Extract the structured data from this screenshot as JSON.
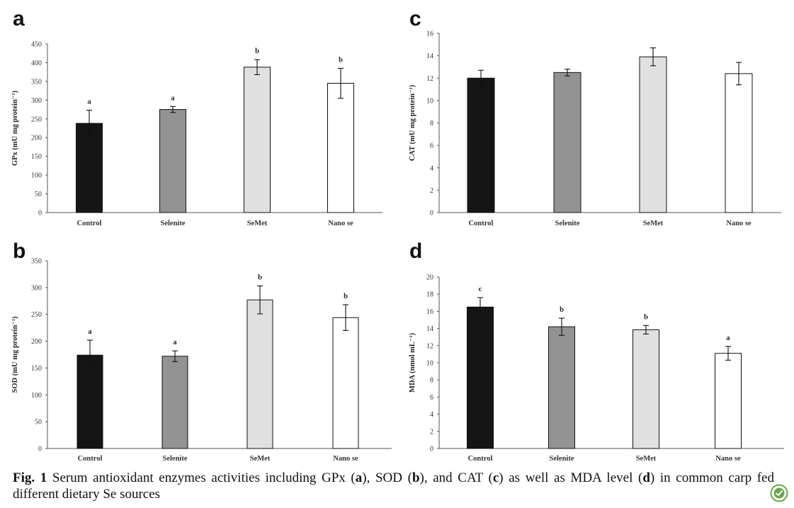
{
  "panels": [
    {
      "letter": "a",
      "chart_data": {
        "type": "bar",
        "categories": [
          "Control",
          "Selenite",
          "SeMet",
          "Nano se"
        ],
        "values": [
          238,
          275,
          388,
          345
        ],
        "errors": [
          35,
          8,
          20,
          40
        ],
        "labels": [
          "a",
          "a",
          "b",
          "b"
        ],
        "ylabel": "GPx (mU mg protein⁻¹)",
        "ylim": [
          0,
          450
        ],
        "yticks": [
          0,
          50,
          100,
          150,
          200,
          250,
          300,
          350,
          400,
          450
        ],
        "bar_colors": [
          "#151515",
          "#939393",
          "#e0e0e0",
          "#ffffff"
        ]
      }
    },
    {
      "letter": "b",
      "chart_data": {
        "type": "bar",
        "categories": [
          "Control",
          "Selenite",
          "SeMet",
          "Nano se"
        ],
        "values": [
          174,
          172,
          277,
          244
        ],
        "errors": [
          28,
          10,
          26,
          24
        ],
        "labels": [
          "a",
          "a",
          "b",
          "b"
        ],
        "ylabel": "SOD (mU mg protein⁻¹)",
        "ylim": [
          0,
          350
        ],
        "yticks": [
          0,
          50,
          100,
          150,
          200,
          250,
          300,
          350
        ],
        "bar_colors": [
          "#151515",
          "#939393",
          "#e0e0e0",
          "#ffffff"
        ]
      }
    },
    {
      "letter": "c",
      "chart_data": {
        "type": "bar",
        "categories": [
          "Control",
          "Selenite",
          "SeMet",
          "Nano se"
        ],
        "values": [
          12.0,
          12.5,
          13.9,
          12.4
        ],
        "errors": [
          0.7,
          0.3,
          0.8,
          1.0
        ],
        "labels": [
          "",
          "",
          "",
          ""
        ],
        "ylabel": "CAT (mU mg protein⁻¹)",
        "ylim": [
          0,
          16
        ],
        "yticks": [
          0,
          2,
          4,
          6,
          8,
          10,
          12,
          14,
          16
        ],
        "bar_colors": [
          "#151515",
          "#939393",
          "#e0e0e0",
          "#ffffff"
        ]
      }
    },
    {
      "letter": "d",
      "chart_data": {
        "type": "bar",
        "categories": [
          "Control",
          "Selenite",
          "SeMet",
          "Nano se"
        ],
        "values": [
          16.5,
          14.2,
          13.85,
          11.1
        ],
        "errors": [
          1.1,
          1.0,
          0.5,
          0.8
        ],
        "labels": [
          "c",
          "b",
          "b",
          "a"
        ],
        "ylabel": "MDA (nmol mL⁻¹)",
        "ylim": [
          0,
          20
        ],
        "yticks": [
          0,
          2,
          4,
          6,
          8,
          10,
          12,
          14,
          16,
          18,
          20
        ],
        "bar_colors": [
          "#151515",
          "#939393",
          "#e0e0e0",
          "#ffffff"
        ]
      }
    }
  ],
  "caption": {
    "prefix": "Fig. 1",
    "parts": [
      "  Serum antioxidant enzymes activities including GPx (",
      "a",
      "), SOD (",
      "b",
      "), and CAT (",
      "c",
      ") as well as MDA level (",
      "d",
      ") in common carp fed different dietary Se sources"
    ]
  },
  "badge_icon": "springer-crossmark-icon",
  "badge_color": "#6aa84f"
}
